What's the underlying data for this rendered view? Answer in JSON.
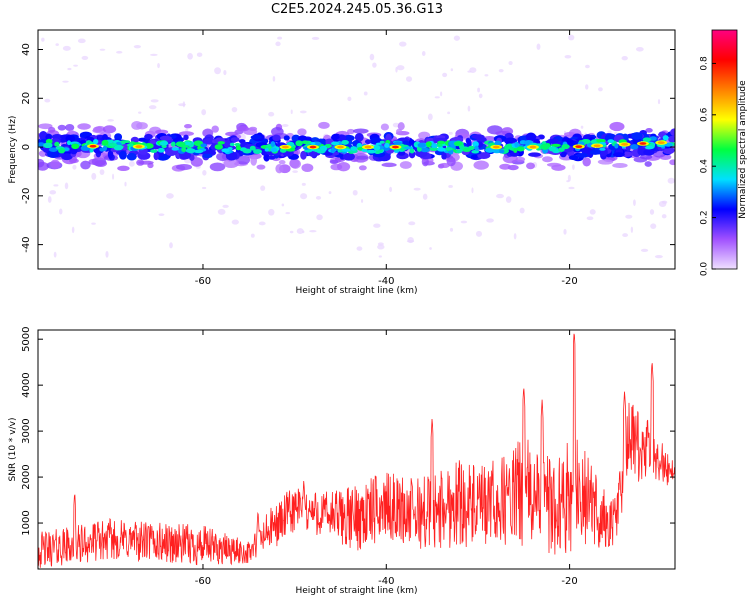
{
  "title": "C2E5.2024.245.05.36.G13",
  "chart_data": [
    {
      "type": "heatmap",
      "title": "C2E5.2024.245.05.36.G13",
      "xlabel": "Height of straight line (km)",
      "ylabel": "Frequency (Hz)",
      "xlim": [
        -78,
        -8.5
      ],
      "ylim": [
        -50,
        48
      ],
      "xticks": [
        -60,
        -40,
        -20
      ],
      "yticks": [
        -40,
        -20,
        0,
        20,
        40
      ],
      "colorbar": {
        "label": "Normalized spectral amplitude",
        "range": [
          0,
          0.93
        ],
        "ticks": [
          "0.0",
          "0.2",
          "0.4",
          "0.6",
          "0.8"
        ],
        "tick_values": [
          0.0,
          0.2,
          0.4,
          0.6,
          0.8
        ],
        "colormap": [
          "#f0e0ff",
          "#a050ff",
          "#0000ff",
          "#00e0ff",
          "#00ff40",
          "#ffff00",
          "#ff8000",
          "#ff0000",
          "#ff0080"
        ]
      },
      "ridge": {
        "center_hz": [
          [
            -78,
            0.5
          ],
          [
            -60,
            0
          ],
          [
            -40,
            0
          ],
          [
            -20,
            0
          ],
          [
            -9,
            2
          ]
        ],
        "hotspots_x": [
          -72,
          -67,
          -51,
          -48,
          -45,
          -42,
          -39,
          -28,
          -24,
          -19,
          -17,
          -14,
          -12,
          -10
        ]
      },
      "grid": false,
      "legend": "none"
    },
    {
      "type": "line",
      "xlabel": "Height of straight line (km)",
      "ylabel": "SNR (10 * v/v)",
      "xlim": [
        -78,
        -8.5
      ],
      "ylim": [
        0,
        5200
      ],
      "xticks": [
        -60,
        -40,
        -20
      ],
      "yticks": [
        1000,
        2000,
        3000,
        4000,
        5000
      ],
      "color": "#ff2020",
      "envelope": {
        "x": [
          -78,
          -70,
          -60,
          -55,
          -53,
          -50,
          -47,
          -44,
          -42,
          -40,
          -37,
          -34,
          -32,
          -30,
          -27,
          -25,
          -23,
          -21,
          -19.5,
          -18,
          -16,
          -15,
          -13.5,
          -12,
          -11,
          -9,
          -8.5
        ],
        "base": [
          400,
          650,
          500,
          350,
          800,
          1300,
          1200,
          1100,
          1200,
          1400,
          1200,
          1300,
          1500,
          1300,
          1500,
          1700,
          1400,
          1400,
          1700,
          1500,
          1000,
          1000,
          2900,
          2500,
          2600,
          2100,
          2200
        ],
        "amp": [
          400,
          450,
          450,
          250,
          450,
          550,
          500,
          700,
          800,
          700,
          800,
          900,
          1000,
          900,
          1000,
          1200,
          1200,
          1100,
          1300,
          1000,
          700,
          600,
          800,
          800,
          700,
          300,
          300
        ]
      },
      "peaks": [
        [
          -74,
          1700
        ],
        [
          -54,
          1300
        ],
        [
          -49,
          1950
        ],
        [
          -35,
          3300
        ],
        [
          -25,
          4000
        ],
        [
          -23,
          3700
        ],
        [
          -19.5,
          5200
        ],
        [
          -14,
          3900
        ],
        [
          -11,
          4550
        ]
      ],
      "grid": false,
      "legend": "none"
    }
  ]
}
